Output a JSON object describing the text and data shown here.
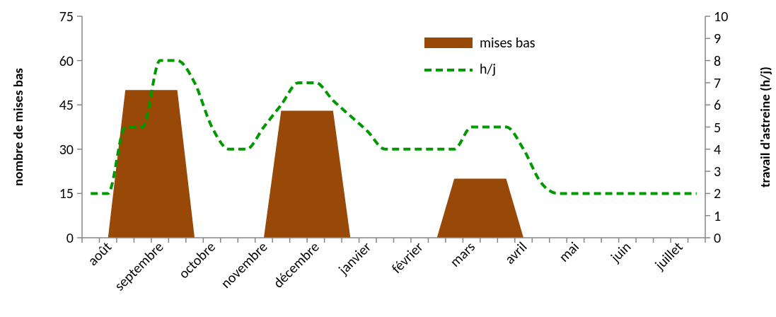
{
  "chart_data": {
    "type": "area",
    "categories": [
      null,
      "août",
      null,
      null,
      "septembre",
      null,
      null,
      "octobre",
      null,
      null,
      "novembre",
      null,
      null,
      "décembre",
      null,
      null,
      "janvier",
      null,
      null,
      "février",
      null,
      null,
      "mars",
      null,
      null,
      "avril",
      null,
      null,
      "mai",
      null,
      null,
      "juin",
      null,
      null,
      "juillet",
      null
    ],
    "ylabel": "nombre de mises bas",
    "y2label": "travail d'astreine (h/j)",
    "ylim": [
      0,
      75
    ],
    "yticks": [
      0,
      15,
      30,
      45,
      60,
      75
    ],
    "y2lim": [
      0,
      10
    ],
    "y2ticks": [
      0,
      1,
      2,
      3,
      4,
      5,
      6,
      7,
      8,
      9,
      10
    ],
    "legend": "top",
    "series": [
      {
        "name": "mises bas",
        "color": "#984807",
        "values": [
          0,
          0,
          50,
          50,
          50,
          50,
          0,
          0,
          0,
          0,
          0,
          43,
          43,
          43,
          43,
          0,
          0,
          0,
          0,
          0,
          0,
          20,
          20,
          20,
          20,
          0,
          0,
          0,
          0,
          0,
          0,
          0,
          0,
          0,
          0,
          0
        ]
      },
      {
        "name": "h/j",
        "type": "line",
        "axis": "y2",
        "color": "#009900",
        "line_style": "dashed",
        "values": [
          2,
          2,
          5,
          5,
          8,
          8,
          7,
          5,
          4,
          4,
          5,
          6,
          7,
          7,
          6.2,
          5.5,
          4.8,
          4,
          4,
          4,
          4,
          4,
          5,
          5,
          5,
          4,
          2.5,
          2,
          2,
          2,
          2,
          2,
          2,
          2,
          2,
          2
        ]
      }
    ]
  }
}
